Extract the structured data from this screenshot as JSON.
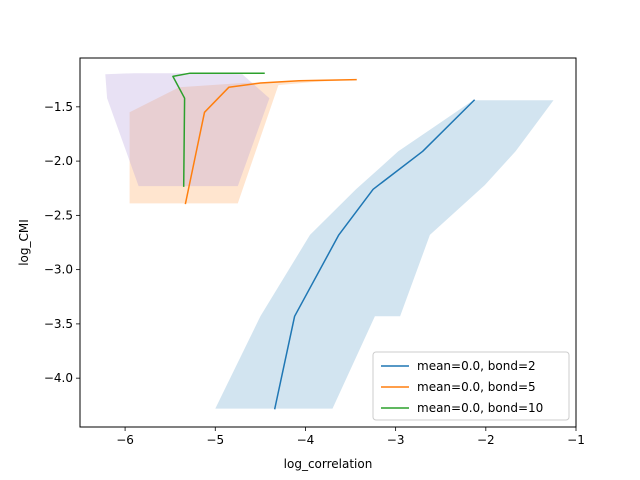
{
  "chart_data": {
    "type": "line",
    "xlabel": "log_correlation",
    "ylabel": "log_CMI",
    "xlim": [
      -6.5,
      -1.0
    ],
    "ylim": [
      -4.45,
      -1.05
    ],
    "xticks": [
      -6,
      -5,
      -4,
      -3,
      -2,
      -1
    ],
    "xtick_labels": [
      "−6",
      "−5",
      "−4",
      "−3",
      "−2",
      "−1"
    ],
    "yticks": [
      -4.0,
      -3.5,
      -3.0,
      -2.5,
      -2.0,
      -1.5
    ],
    "ytick_labels": [
      "−4.0",
      "−3.5",
      "−3.0",
      "−2.5",
      "−2.0",
      "−1.5"
    ],
    "grid": false,
    "legend_position": "lower-right",
    "series": [
      {
        "name": "mean=0.0, bond=2",
        "color": "#1f77b4",
        "x": [
          -4.34,
          -4.12,
          -3.63,
          -3.25,
          -2.7,
          -2.13
        ],
        "y": [
          -4.28,
          -3.43,
          -2.68,
          -2.26,
          -1.91,
          -1.44
        ],
        "band_upper_x": [
          -5.0,
          -4.5,
          -3.95,
          -3.44,
          -2.97,
          -2.14,
          -1.25
        ],
        "band_upper_y": [
          -4.28,
          -3.43,
          -2.68,
          -2.26,
          -1.91,
          -1.44,
          -1.44
        ],
        "band_lower_x": [
          -3.7,
          -3.23,
          -2.95,
          -2.62,
          -2.01,
          -1.67,
          -1.25
        ],
        "band_lower_y": [
          -4.28,
          -3.43,
          -3.43,
          -2.68,
          -2.22,
          -1.91,
          -1.44
        ]
      },
      {
        "name": "mean=0.0, bond=5",
        "color": "#ff7f0e",
        "x": [
          -5.33,
          -5.12,
          -4.85,
          -4.5,
          -4.07,
          -3.44
        ],
        "y": [
          -2.39,
          -1.55,
          -1.32,
          -1.28,
          -1.26,
          -1.25
        ],
        "band_polygon_x": [
          -5.95,
          -5.95,
          -5.4,
          -4.7,
          -3.8,
          -3.44,
          -3.9,
          -4.3,
          -4.75
        ],
        "band_polygon_y": [
          -2.39,
          -1.55,
          -1.32,
          -1.28,
          -1.26,
          -1.25,
          -1.27,
          -1.3,
          -2.39
        ]
      },
      {
        "name": "mean=0.0, bond=10",
        "color": "#2ca02c",
        "x": [
          -5.35,
          -5.34,
          -5.47,
          -5.28,
          -4.95,
          -4.46
        ],
        "y": [
          -2.23,
          -1.42,
          -1.22,
          -1.19,
          -1.19,
          -1.19
        ],
        "band_polygon_x": [
          -6.2,
          -6.22,
          -5.9,
          -5.2,
          -4.7,
          -4.4,
          -4.75,
          -5.85
        ],
        "band_polygon_y": [
          -1.42,
          -1.2,
          -1.19,
          -1.19,
          -1.2,
          -1.42,
          -2.23,
          -2.23
        ]
      }
    ]
  }
}
